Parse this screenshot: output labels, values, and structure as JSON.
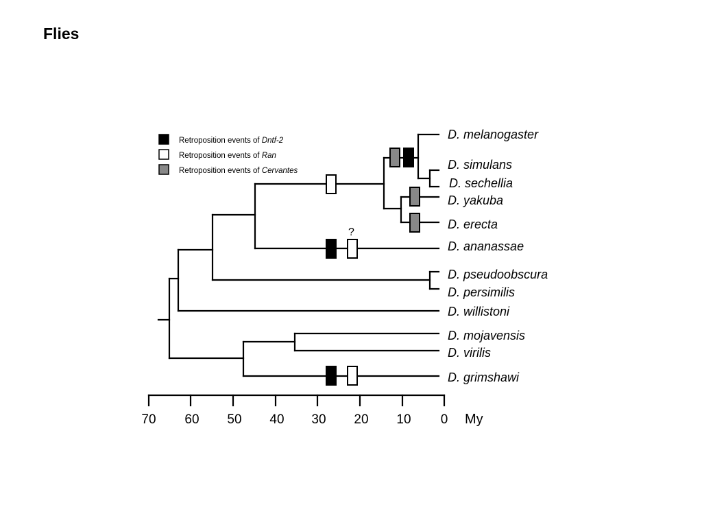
{
  "slide": {
    "title": "Flies"
  },
  "legend": [
    {
      "prefix": "Retroposition events of ",
      "gene": "Dntf-2",
      "color": "#000000"
    },
    {
      "prefix": "Retroposition events of ",
      "gene": "Ran",
      "color": "#ffffff"
    },
    {
      "prefix": "Retroposition events of ",
      "gene": "Cervantes",
      "color": "#888888"
    }
  ],
  "species": [
    "D. melanogaster",
    "D. simulans",
    "D. sechellia",
    "D. yakuba",
    "D. erecta",
    "D. ananassae",
    "D. pseudoobscura",
    "D. persimilis",
    "D. willistoni",
    "D. mojavensis",
    "D. virilis",
    "D. grimshawi"
  ],
  "axis": {
    "unit": "My",
    "ticks": [
      70,
      60,
      50,
      40,
      30,
      20,
      10,
      0
    ]
  },
  "annotation": {
    "uncertain_mark": "?"
  },
  "tree": {
    "nodes": [
      {
        "id": "mel-sim-sec",
        "age": 7
      },
      {
        "id": "sim-sec",
        "age": 3
      },
      {
        "id": "yak-ere",
        "age": 10
      },
      {
        "id": "mel-group",
        "age": 14
      },
      {
        "id": "mel-ana",
        "age": 45
      },
      {
        "id": "pse-per",
        "age": 3
      },
      {
        "id": "sophophora-obscura",
        "age": 55
      },
      {
        "id": "sophophora",
        "age": 63
      },
      {
        "id": "moj-vir",
        "age": 35
      },
      {
        "id": "drosophila-group",
        "age": 48
      },
      {
        "id": "root",
        "age": 65
      }
    ],
    "events": [
      {
        "gene": "Dntf-2",
        "branch": "D. melanogaster + D. simulans + D. sechellia",
        "age": 8
      },
      {
        "gene": "Cervantes",
        "branch": "D. melanogaster + D. simulans + D. sechellia",
        "age": 11
      },
      {
        "gene": "Cervantes",
        "branch": "D. yakuba",
        "age": 7
      },
      {
        "gene": "Cervantes",
        "branch": "D. erecta",
        "age": 7
      },
      {
        "gene": "Ran",
        "branch": "D. melanogaster group",
        "age": 27
      },
      {
        "gene": "Dntf-2",
        "branch": "D. ananassae",
        "age": 27
      },
      {
        "gene": "Ran",
        "branch": "D. ananassae",
        "age": 22,
        "uncertain": true
      },
      {
        "gene": "Dntf-2",
        "branch": "D. grimshawi",
        "age": 27
      },
      {
        "gene": "Ran",
        "branch": "D. grimshawi",
        "age": 22
      }
    ]
  }
}
